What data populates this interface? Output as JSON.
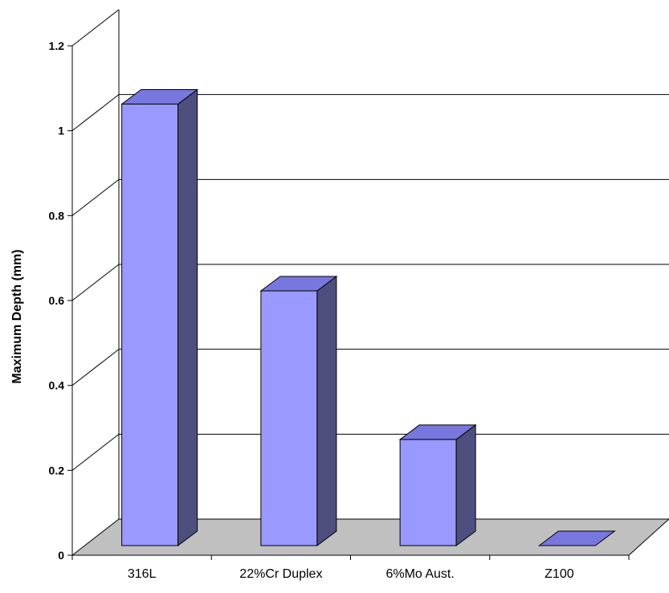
{
  "chart_data": {
    "type": "bar",
    "categories": [
      "316L",
      "22%Cr Duplex",
      "6%Mo Aust.",
      "Z100"
    ],
    "values": [
      1.04,
      0.6,
      0.25,
      0.0
    ],
    "ylabel": "Maximum Depth (mm)",
    "xlabel": "",
    "ylim": [
      0,
      1.2
    ],
    "y_ticks": [
      "0",
      "0.2",
      "0.4",
      "0.6",
      "0.8",
      "1",
      "1.2"
    ],
    "y_tick_values": [
      0,
      0.2,
      0.4,
      0.6,
      0.8,
      1.0,
      1.2
    ],
    "grid": true,
    "three_d": true,
    "legend": "none",
    "colors": {
      "bar_front": "#9999ff",
      "bar_top": "#7777dd",
      "bar_side": "#4f4f7f",
      "floor": "#c0c0c0",
      "grid": "#000000"
    }
  }
}
